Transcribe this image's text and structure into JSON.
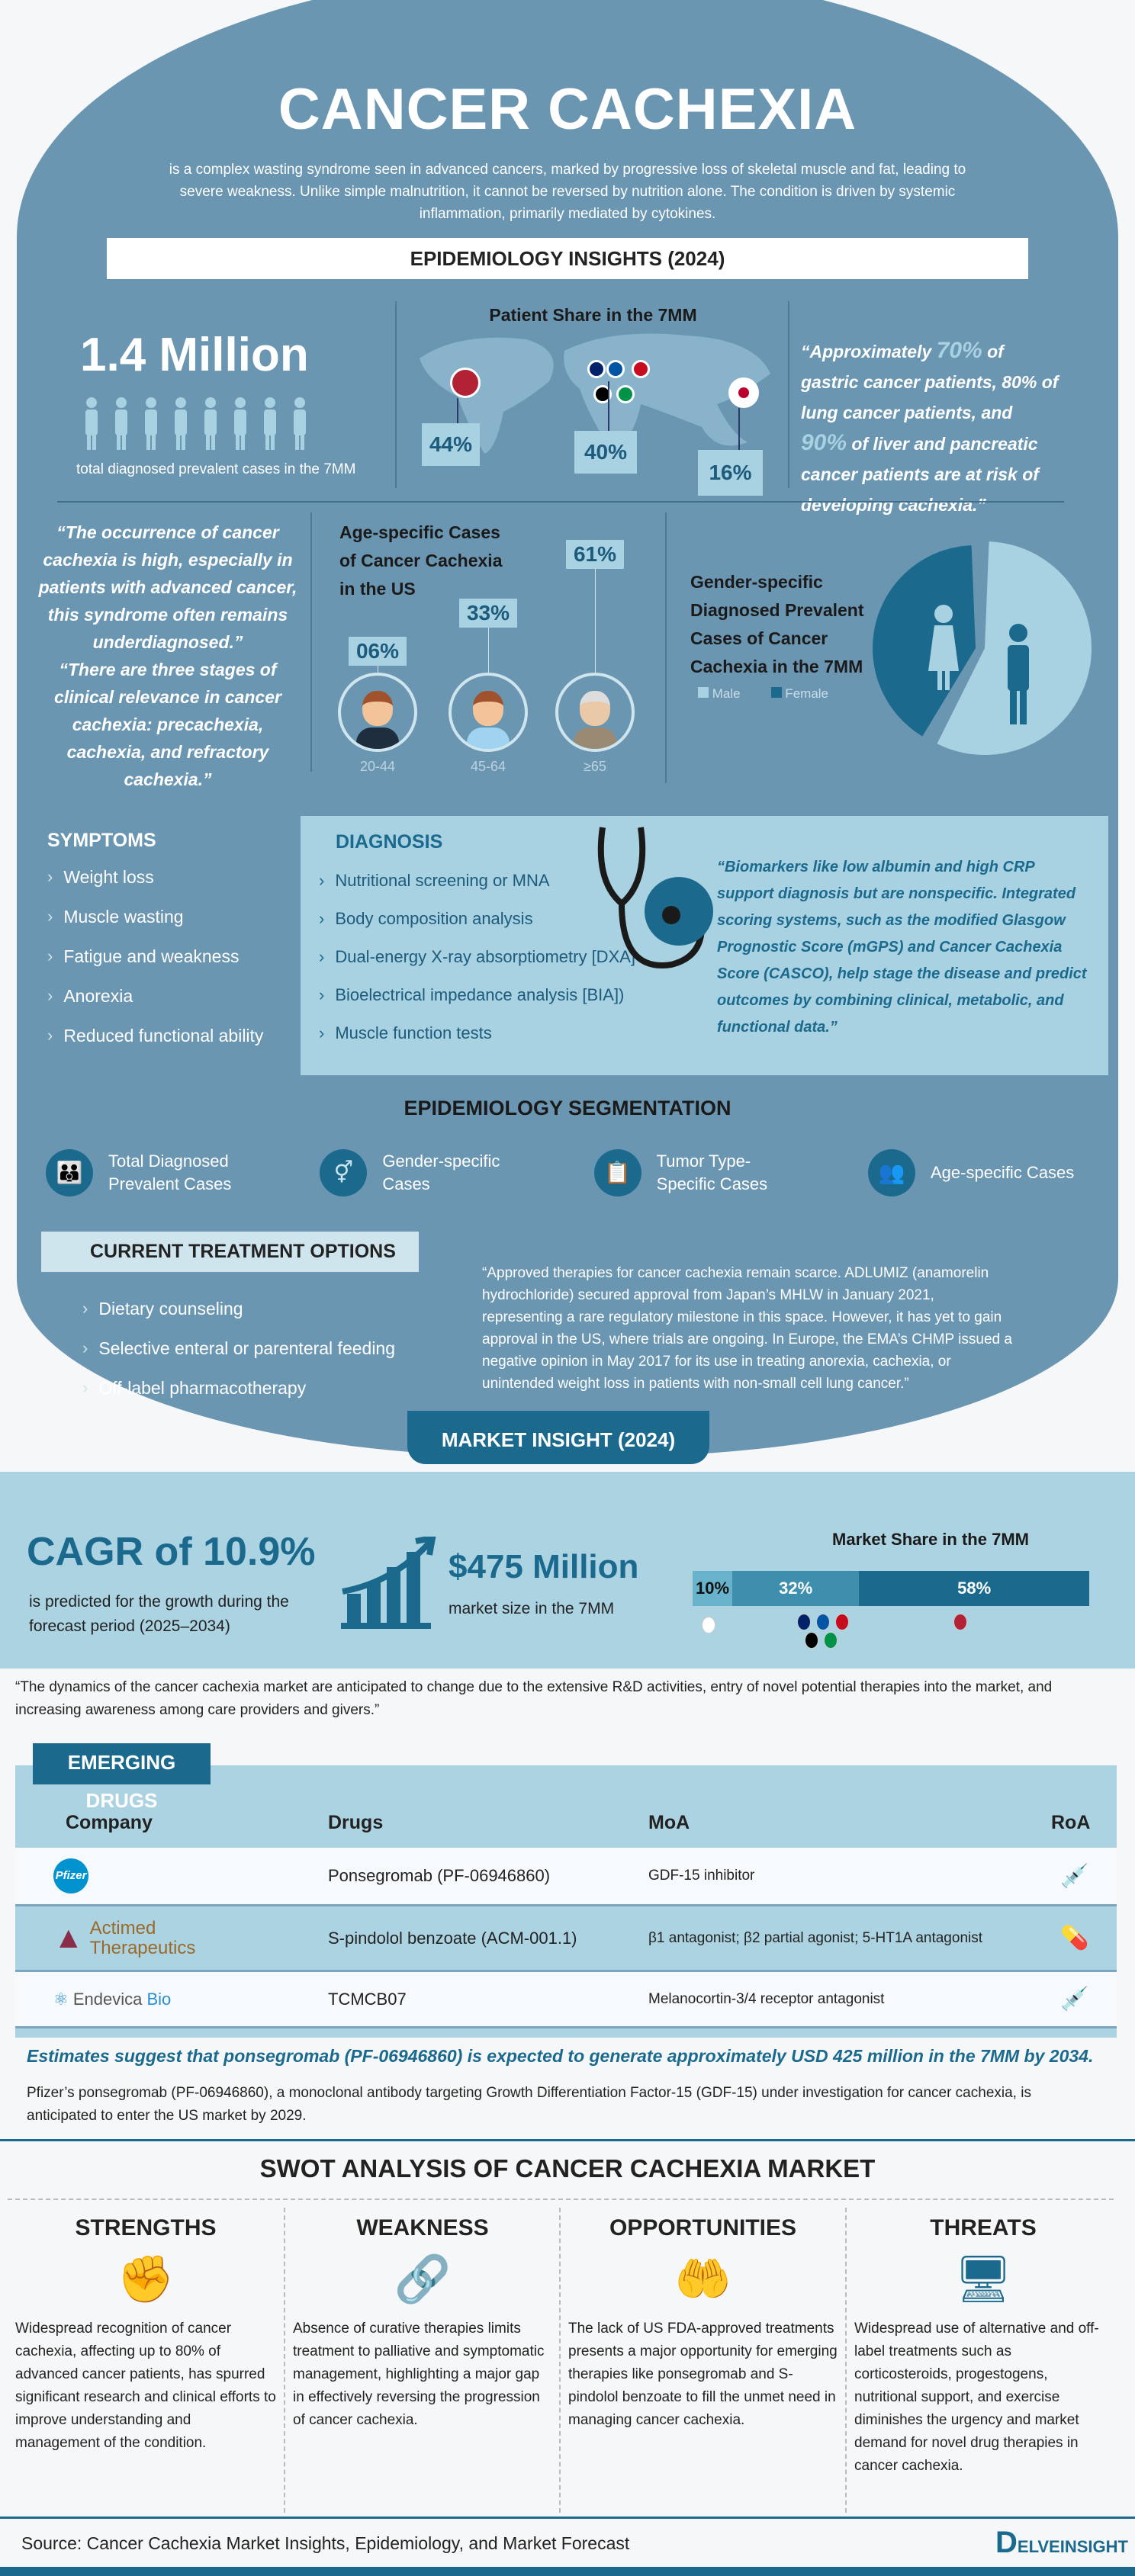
{
  "header": {
    "title": "CANCER CACHEXIA",
    "description": "is a complex wasting syndrome seen in advanced cancers, marked by progressive loss of skeletal muscle and fat, leading to severe weakness. Unlike simple malnutrition, it cannot be reversed by nutrition alone. The condition is driven by systemic inflammation, primarily mediated by cytokines."
  },
  "epi": {
    "title": "EPIDEMIOLOGY INSIGHTS (2024)",
    "total": {
      "value": "1.4 Million",
      "caption": "total diagnosed prevalent cases in the 7MM"
    },
    "patient_share": {
      "title": "Patient Share in the 7MM",
      "items": [
        {
          "region": "US",
          "value": "44%"
        },
        {
          "region": "EU4 and UK",
          "value": "40%"
        },
        {
          "region": "Japan",
          "value": "16%"
        }
      ]
    },
    "risk_quote": {
      "p1": "“Approximately ",
      "h1": "70%",
      "p2": " of gastric cancer patients, 80% of lung cancer patients, and ",
      "h2": "90%",
      "p3": " of liver and pancreatic cancer patients are at risk of developing cachexia.”"
    },
    "quote1": "“The occurrence of cancer cachexia is high, especially in patients with advanced cancer, this syndrome often remains underdiagnosed.”",
    "quote2": "“There are three stages of clinical relevance in cancer cachexia: precachexia, cachexia, and refractory cachexia.”",
    "age": {
      "title": "Age-specific Cases of Cancer Cachexia in the US",
      "groups": [
        {
          "label": "20-44",
          "value": "06%"
        },
        {
          "label": "45-64",
          "value": "33%"
        },
        {
          "label": "≥65",
          "value": "61%"
        }
      ]
    },
    "gender": {
      "title": "Gender-specific Diagnosed Prevalent Cases of Cancer Cachexia in the 7MM",
      "legend": [
        "Male",
        "Female"
      ],
      "shares": {
        "male": 58,
        "female": 42
      },
      "colors": {
        "male": "#a8d1e1",
        "female": "#1b6a8e"
      }
    }
  },
  "symptoms": {
    "title": "SYMPTOMS",
    "items": [
      "Weight loss",
      "Muscle wasting",
      "Fatigue and weakness",
      "Anorexia",
      "Reduced functional ability"
    ]
  },
  "diagnosis": {
    "title": "DIAGNOSIS",
    "items": [
      "Nutritional screening or MNA",
      "Body composition analysis",
      "Dual-energy X-ray absorptiometry [DXA]",
      "Bioelectrical impedance analysis [BIA])",
      "Muscle function tests"
    ],
    "quote": "“Biomarkers like low albumin and high CRP support diagnosis but are nonspecific. Integrated scoring systems, such as the modified Glasgow Prognostic Score (mGPS) and Cancer Cachexia Score (CASCO), help stage the disease and predict outcomes by combining clinical, metabolic, and functional data.”"
  },
  "segmentation": {
    "title": "EPIDEMIOLOGY SEGMENTATION",
    "items": [
      "Total Diagnosed Prevalent Cases",
      "Gender-specific Cases",
      "Tumor Type-Specific Cases",
      "Age-specific Cases"
    ]
  },
  "treatment": {
    "title": "CURRENT TREATMENT OPTIONS",
    "items": [
      "Dietary counseling",
      "Selective enteral or parenteral feeding",
      "Off-label pharmacotherapy"
    ],
    "quote": "“Approved therapies for cancer cachexia remain scarce. ADLUMIZ (anamorelin hydrochloride) secured approval from Japan’s MHLW in January 2021, representing a rare regulatory milestone in this space. However, it has yet to gain approval in the US, where trials are ongoing. In Europe, the EMA’s CHMP issued a negative opinion in May 2017 for its use in treating anorexia, cachexia, or unintended weight loss in patients with non-small cell lung cancer.”"
  },
  "market": {
    "title": "MARKET INSIGHT (2024)",
    "cagr": "CAGR of 10.9%",
    "cagr_caption": "is predicted for the growth during the forecast period (2025–2034)",
    "size": "$475 Million",
    "size_caption": "market size in the 7MM",
    "share_title": "Market Share in the 7MM",
    "shares": [
      {
        "region": "Japan",
        "value": 10,
        "label": "10%"
      },
      {
        "region": "EU4 and UK",
        "value": 32,
        "label": "32%"
      },
      {
        "region": "US",
        "value": 58,
        "label": "58%"
      }
    ],
    "quote": "“The dynamics of the cancer cachexia market are anticipated to change due to the extensive R&D activities, entry of novel potential therapies into the market, and increasing awareness among care providers and givers.”"
  },
  "drugs": {
    "title": "EMERGING DRUGS",
    "columns": [
      "Company",
      "Drugs",
      "MoA",
      "RoA"
    ],
    "rows": [
      {
        "company": "Pfizer",
        "drug": "Ponsegromab (PF-06946860)",
        "moa": "GDF-15 inhibitor",
        "roa": "syringe-icon"
      },
      {
        "company": "Actimed Therapeutics",
        "drug": "S-pindolol benzoate (ACM-001.1)",
        "moa": "β1 antagonist; β2 partial agonist; 5-HT1A antagonist",
        "roa": "pill-icon"
      },
      {
        "company": "Endevica Bio",
        "drug": "TCMCB07",
        "moa": "Melanocortin-3/4 receptor antagonist",
        "roa": "syringe-icon"
      }
    ],
    "estimate": "Estimates suggest that ponsegromab (PF-06946860) is expected to generate approximately USD 425 million in the 7MM by 2034.",
    "note": "Pfizer’s ponsegromab (PF-06946860), a monoclonal antibody targeting Growth Differentiation Factor-15 (GDF-15) under investigation for cancer cachexia, is anticipated to enter the US market by 2029."
  },
  "swot": {
    "title": "SWOT ANALYSIS OF CANCER CACHEXIA MARKET",
    "items": [
      {
        "title": "STRENGTHS",
        "text": "Widespread recognition of cancer cachexia, affecting up to 80% of advanced cancer patients, has spurred significant research and clinical efforts to improve understanding and management of the condition."
      },
      {
        "title": "WEAKNESS",
        "text": "Absence of curative therapies limits treatment to palliative and symptomatic management, highlighting a major gap in effectively reversing the progression of cancer cachexia."
      },
      {
        "title": "OPPORTUNITIES",
        "text": "The lack of US FDA-approved treatments presents a major opportunity for emerging therapies like ponsegromab and S-pindolol benzoate to fill the unmet need in managing cancer cachexia."
      },
      {
        "title": "THREATS",
        "text": "Widespread use of alternative and off-label treatments such as corticosteroids, progestogens, nutritional support, and exercise diminishes the urgency and market demand for novel drug therapies in cancer cachexia."
      }
    ]
  },
  "footer": {
    "source": "Source: Cancer Cachexia Market Insights, Epidemiology, and Market Forecast",
    "brand": "DELVEINSIGHT"
  },
  "colors": {
    "oval": "#6b96b1",
    "dark": "#1b6a8e",
    "light": "#a8d1e1"
  }
}
